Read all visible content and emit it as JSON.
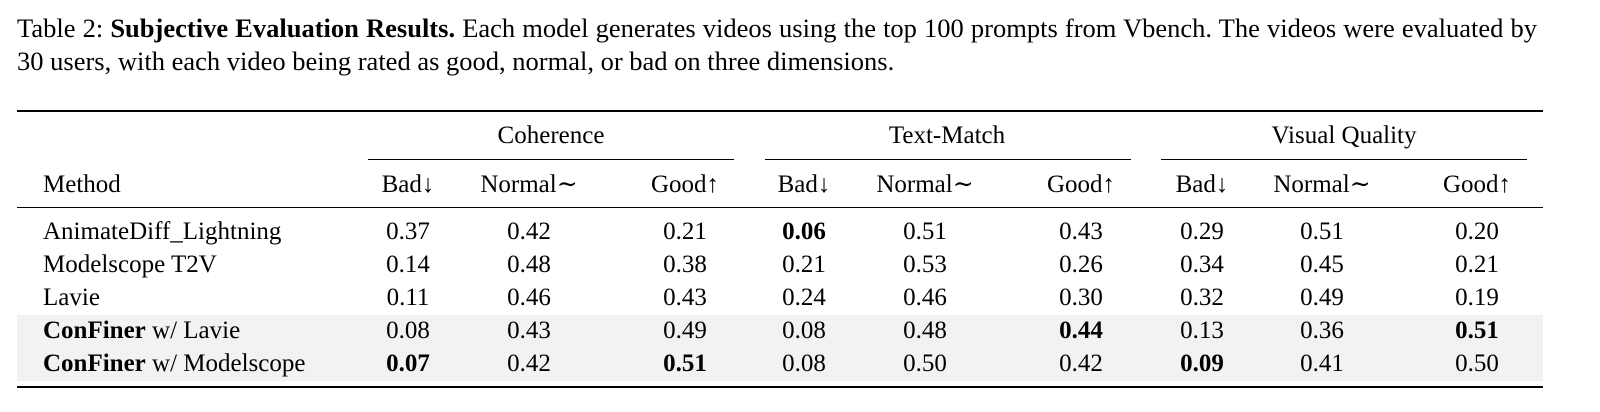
{
  "caption": {
    "label": "Table 2:",
    "lead": "Subjective Evaluation Results.",
    "text": "Each model generates videos using the top 100 prompts from Vbench. The videos were evaluated by 30 users, with each video being rated as good, normal, or bad on three dimensions."
  },
  "table": {
    "method_header": "Method",
    "groups": [
      {
        "name": "Coherence",
        "cols": [
          "Bad↓",
          "Normal∼",
          "Good↑"
        ]
      },
      {
        "name": "Text-Match",
        "cols": [
          "Bad↓",
          "Normal∼",
          "Good↑"
        ]
      },
      {
        "name": "Visual Quality",
        "cols": [
          "Bad↓",
          "Normal∼",
          "Good↑"
        ]
      }
    ],
    "rows": [
      {
        "method_bold": "",
        "method": "AnimateDiff_Lightning",
        "values": [
          "0.37",
          "0.42",
          "0.21",
          "0.06",
          "0.51",
          "0.43",
          "0.29",
          "0.51",
          "0.20"
        ],
        "bold": [
          3
        ],
        "shaded": false
      },
      {
        "method_bold": "",
        "method": "Modelscope T2V",
        "values": [
          "0.14",
          "0.48",
          "0.38",
          "0.21",
          "0.53",
          "0.26",
          "0.34",
          "0.45",
          "0.21"
        ],
        "bold": [],
        "shaded": false
      },
      {
        "method_bold": "",
        "method": "Lavie",
        "values": [
          "0.11",
          "0.46",
          "0.43",
          "0.24",
          "0.46",
          "0.30",
          "0.32",
          "0.49",
          "0.19"
        ],
        "bold": [],
        "shaded": false
      },
      {
        "method_bold": "ConFiner",
        "method": " w/ Lavie",
        "values": [
          "0.08",
          "0.43",
          "0.49",
          "0.08",
          "0.48",
          "0.44",
          "0.13",
          "0.36",
          "0.51"
        ],
        "bold": [
          5,
          8
        ],
        "shaded": true
      },
      {
        "method_bold": "ConFiner",
        "method": " w/ Modelscope",
        "values": [
          "0.07",
          "0.42",
          "0.51",
          "0.08",
          "0.50",
          "0.42",
          "0.09",
          "0.41",
          "0.50"
        ],
        "bold": [
          0,
          2,
          6
        ],
        "shaded": true
      }
    ]
  }
}
